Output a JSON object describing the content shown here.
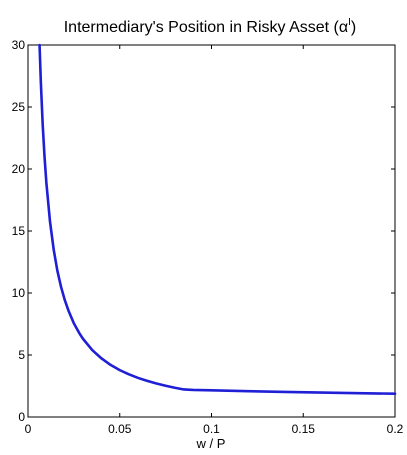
{
  "chart_data": {
    "type": "line",
    "title": "Intermediary's Position in Risky Asset (α",
    "title_superscript": "I",
    "title_close": ")",
    "xlabel": "w / P",
    "ylabel": "",
    "xlim": [
      0,
      0.2
    ],
    "ylim": [
      0,
      30
    ],
    "x_ticks": [
      0,
      0.05,
      0.1,
      0.15,
      0.2
    ],
    "x_tick_labels": [
      "0",
      "0.05",
      "0.1",
      "0.15",
      "0.2"
    ],
    "y_ticks": [
      0,
      5,
      10,
      15,
      20,
      25,
      30
    ],
    "y_tick_labels": [
      "0",
      "5",
      "10",
      "15",
      "20",
      "25",
      "30"
    ],
    "grid": false,
    "line_color": "#1f1fd6",
    "series": [
      {
        "x": [
          0.0063,
          0.007,
          0.008,
          0.009,
          0.01,
          0.012,
          0.014,
          0.016,
          0.018,
          0.02,
          0.022,
          0.025,
          0.028,
          0.03,
          0.035,
          0.04,
          0.045,
          0.05,
          0.055,
          0.06,
          0.065,
          0.07,
          0.075,
          0.08,
          0.085,
          0.09,
          0.1,
          0.12,
          0.14,
          0.16,
          0.18,
          0.2
        ],
        "y": [
          30.0,
          27.0,
          23.6,
          21.0,
          18.9,
          15.75,
          13.5,
          11.8,
          10.5,
          9.45,
          8.6,
          7.55,
          6.75,
          6.3,
          5.4,
          4.73,
          4.2,
          3.78,
          3.44,
          3.15,
          2.91,
          2.7,
          2.52,
          2.36,
          2.22,
          2.18,
          2.15,
          2.08,
          2.02,
          1.97,
          1.92,
          1.88
        ]
      }
    ]
  }
}
